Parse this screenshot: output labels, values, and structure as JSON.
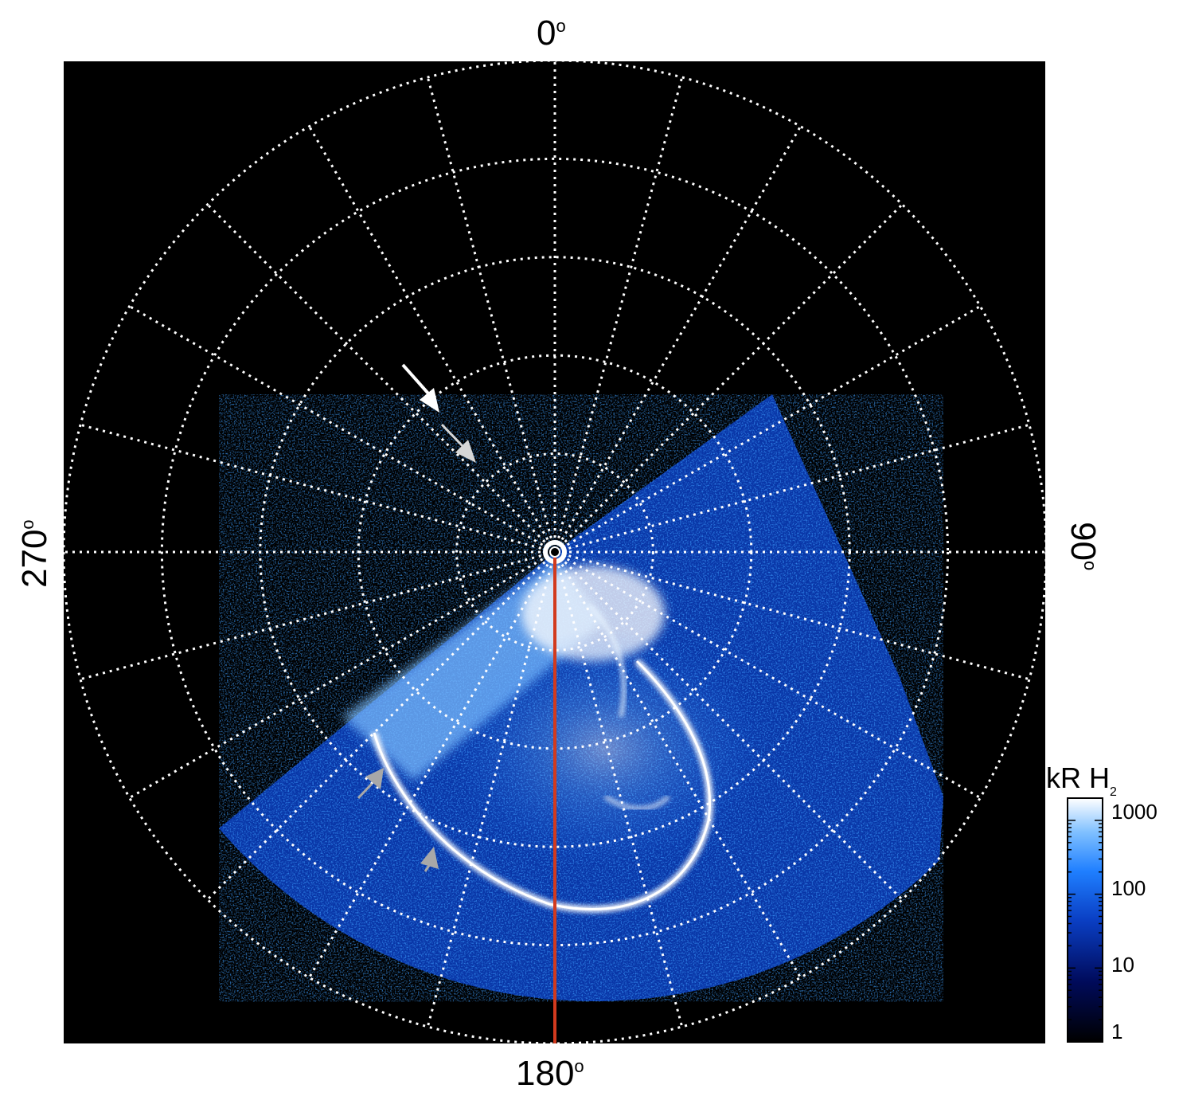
{
  "figure": {
    "labels": {
      "top": "0",
      "bottom": "180",
      "left": "270",
      "right": "90",
      "degree_symbol": "o"
    },
    "colorbar": {
      "title": "kR H",
      "title_subscript": "2",
      "ticks": [
        "1000",
        "100",
        "10",
        "1"
      ],
      "scale": "log",
      "range": [
        1,
        2000
      ],
      "colors": [
        "#000000",
        "#000b5c",
        "#0a3fc4",
        "#1f7fff",
        "#7fc0ff",
        "#ffffff"
      ]
    },
    "grid": {
      "style": "dotted",
      "color": "#ffffff",
      "meridians_every_deg": 15,
      "parallels": 5
    },
    "meridian_line": {
      "color": "#d23a1e",
      "longitude": "180"
    },
    "background": "#000000",
    "arrow_colors": [
      "#ffffff",
      "#d6d6d6",
      "#a8a8a8"
    ]
  }
}
